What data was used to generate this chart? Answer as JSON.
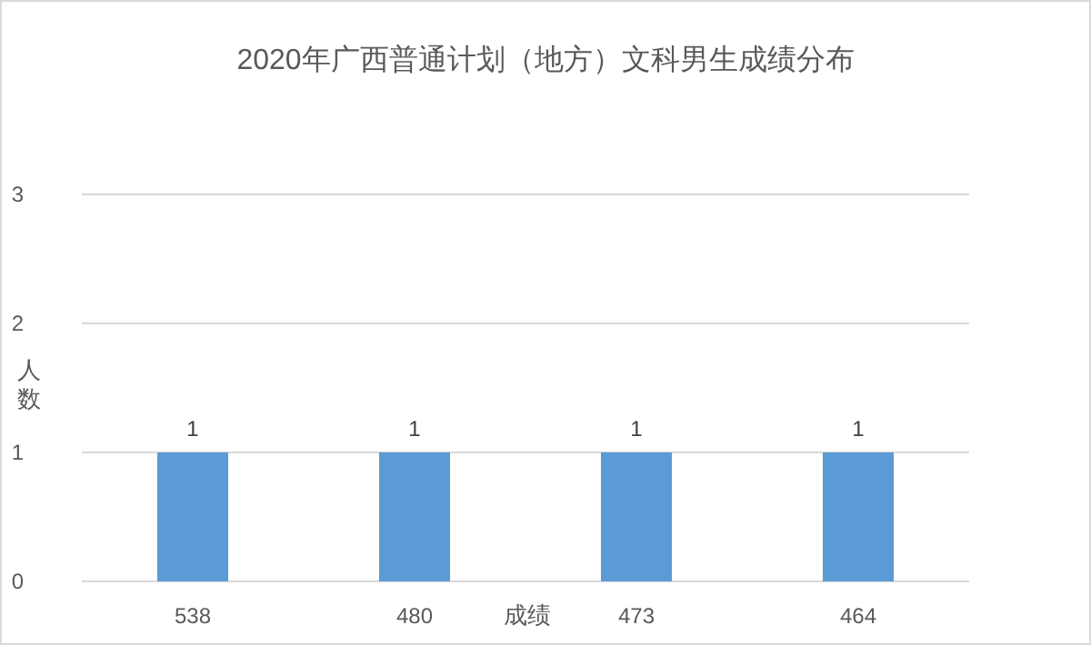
{
  "chart_data": {
    "type": "bar",
    "title": "2020年广西普通计划（地方）文科男生成绩分布",
    "xlabel": "成绩",
    "ylabel": "人数",
    "categories": [
      "538",
      "480",
      "473",
      "464"
    ],
    "series": [
      {
        "color": "#5b9bd5",
        "values": [
          1,
          1,
          1,
          1
        ]
      }
    ],
    "ylim": [
      0,
      3
    ],
    "yticks": [
      0,
      1,
      2,
      3
    ],
    "grid": "y",
    "data_labels": true
  }
}
